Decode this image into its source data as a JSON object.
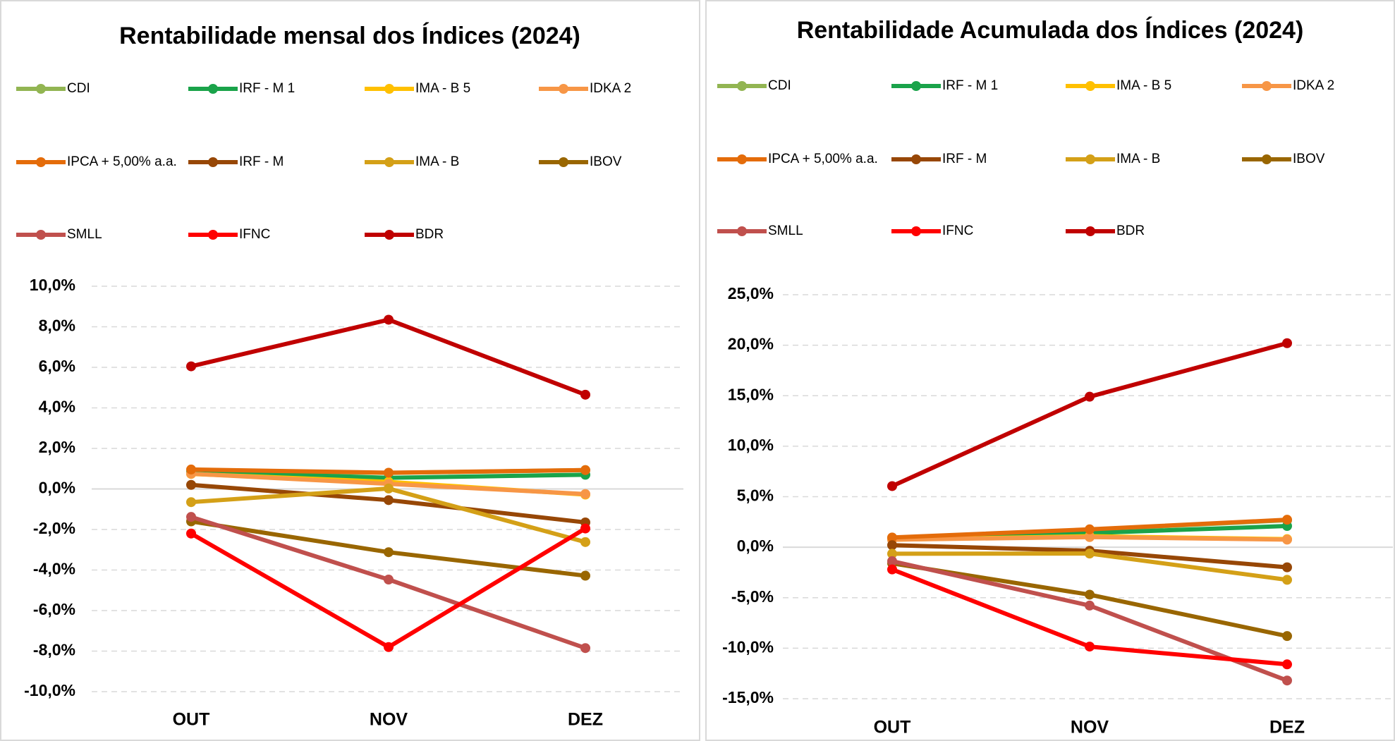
{
  "chart_data": [
    {
      "type": "line",
      "title": "Rentabilidade mensal dos Índices (2024)",
      "categories": [
        "OUT",
        "NOV",
        "DEZ"
      ],
      "ylim": [
        -10,
        10
      ],
      "yticks": [
        {
          "value": -10,
          "label": "-10,0%"
        },
        {
          "value": -8,
          "label": "-8,0%"
        },
        {
          "value": -6,
          "label": "-6,0%"
        },
        {
          "value": -4,
          "label": "-4,0%"
        },
        {
          "value": -2,
          "label": "-2,0%"
        },
        {
          "value": 0,
          "label": "0,0%"
        },
        {
          "value": 2,
          "label": "2,0%"
        },
        {
          "value": 4,
          "label": "4,0%"
        },
        {
          "value": 6,
          "label": "6,0%"
        },
        {
          "value": 8,
          "label": "8,0%"
        },
        {
          "value": 10,
          "label": "10,0%"
        }
      ],
      "grid": true,
      "legend": "top",
      "series": [
        {
          "name": "CDI",
          "color": "#92b552",
          "values": [
            0.93,
            0.79,
            0.93
          ]
        },
        {
          "name": "IRF - M 1",
          "color": "#1aa34a",
          "values": [
            0.85,
            0.55,
            0.7
          ]
        },
        {
          "name": "IMA - B 5",
          "color": "#ffc000",
          "values": [
            0.74,
            0.35,
            -0.28
          ]
        },
        {
          "name": "IDKA 2",
          "color": "#f79646",
          "values": [
            0.75,
            0.25,
            -0.25
          ]
        },
        {
          "name": "IPCA + 5,00% a.a.",
          "color": "#e46c0a",
          "values": [
            0.96,
            0.8,
            0.93
          ]
        },
        {
          "name": "IRF - M",
          "color": "#974706",
          "values": [
            0.2,
            -0.55,
            -1.65
          ]
        },
        {
          "name": "IMA - B",
          "color": "#d4a017",
          "values": [
            -0.65,
            0.02,
            -2.62
          ]
        },
        {
          "name": "IBOV",
          "color": "#996600",
          "values": [
            -1.6,
            -3.12,
            -4.28
          ]
        },
        {
          "name": "SMLL",
          "color": "#c0504d",
          "values": [
            -1.38,
            -4.47,
            -7.85
          ]
        },
        {
          "name": "IFNC",
          "color": "#ff0000",
          "values": [
            -2.2,
            -7.8,
            -1.95
          ]
        },
        {
          "name": "BDR",
          "color": "#c00000",
          "values": [
            6.05,
            8.35,
            4.65
          ]
        }
      ]
    },
    {
      "type": "line",
      "title": "Rentabilidade Acumulada dos Índices (2024)",
      "categories": [
        "OUT",
        "NOV",
        "DEZ"
      ],
      "ylim": [
        -15,
        25
      ],
      "yticks": [
        {
          "value": -15,
          "label": "-15,0%"
        },
        {
          "value": -10,
          "label": "-10,0%"
        },
        {
          "value": -5,
          "label": "-5,0%"
        },
        {
          "value": 0,
          "label": "0,0%"
        },
        {
          "value": 5,
          "label": "5,0%"
        },
        {
          "value": 10,
          "label": "10,0%"
        },
        {
          "value": 15,
          "label": "15,0%"
        },
        {
          "value": 20,
          "label": "20,0%"
        },
        {
          "value": 25,
          "label": "25,0%"
        }
      ],
      "grid": true,
      "legend": "top",
      "series": [
        {
          "name": "CDI",
          "color": "#92b552",
          "values": [
            0.93,
            1.73,
            2.67
          ]
        },
        {
          "name": "IRF - M 1",
          "color": "#1aa34a",
          "values": [
            0.85,
            1.4,
            2.1
          ]
        },
        {
          "name": "IMA - B 5",
          "color": "#ffc000",
          "values": [
            0.74,
            1.09,
            0.8
          ]
        },
        {
          "name": "IDKA 2",
          "color": "#f79646",
          "values": [
            0.75,
            1.0,
            0.75
          ]
        },
        {
          "name": "IPCA + 5,00% a.a.",
          "color": "#e46c0a",
          "values": [
            0.96,
            1.77,
            2.72
          ]
        },
        {
          "name": "IRF - M",
          "color": "#974706",
          "values": [
            0.2,
            -0.35,
            -1.99
          ]
        },
        {
          "name": "IMA - B",
          "color": "#d4a017",
          "values": [
            -0.65,
            -0.63,
            -3.23
          ]
        },
        {
          "name": "IBOV",
          "color": "#996600",
          "values": [
            -1.6,
            -4.7,
            -8.8
          ]
        },
        {
          "name": "SMLL",
          "color": "#c0504d",
          "values": [
            -1.38,
            -5.78,
            -13.2
          ]
        },
        {
          "name": "IFNC",
          "color": "#ff0000",
          "values": [
            -2.2,
            -9.84,
            -11.6
          ]
        },
        {
          "name": "BDR",
          "color": "#c00000",
          "values": [
            6.05,
            14.9,
            20.2
          ]
        }
      ]
    }
  ]
}
